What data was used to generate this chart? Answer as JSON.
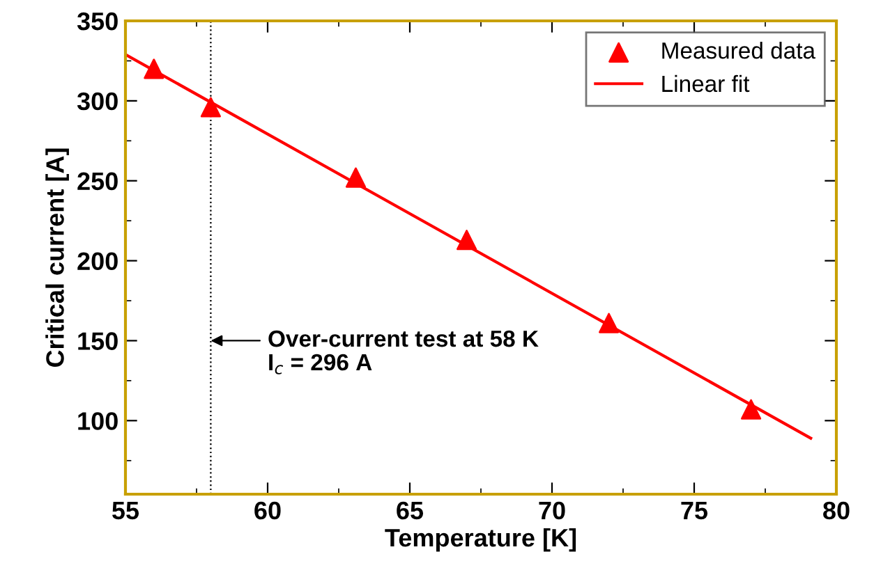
{
  "chart_data": {
    "type": "scatter",
    "xlabel": "Temperature [K]",
    "ylabel": "Critical current [A]",
    "xlim": [
      55,
      80
    ],
    "xticks": [
      55,
      60,
      65,
      70,
      75,
      80
    ],
    "ylim": [
      54,
      350
    ],
    "yticks": [
      100,
      150,
      200,
      250,
      300,
      350
    ],
    "series": [
      {
        "name": "Measured data",
        "color": "#ff0000",
        "marker": "triangle",
        "x": [
          56,
          58,
          63.1,
          67,
          72,
          77
        ],
        "values": [
          320,
          296,
          252,
          213,
          161,
          107
        ]
      },
      {
        "name": "Linear fit",
        "type": "line",
        "color": "#ff0000",
        "marker": "none",
        "line_style": "solid",
        "x": [
          55,
          79.1
        ],
        "values": [
          329,
          89
        ]
      }
    ],
    "ref_lines": [
      {
        "axis": "x",
        "value": 58,
        "color": "#000000",
        "line_style": "dotted"
      }
    ],
    "annotations": [
      {
        "text": "Over-current test at 58 K",
        "x": 58,
        "y": 150
      },
      "I$_{c}$ = 296 A"
    ],
    "legend": "top right",
    "grid": false
  }
}
